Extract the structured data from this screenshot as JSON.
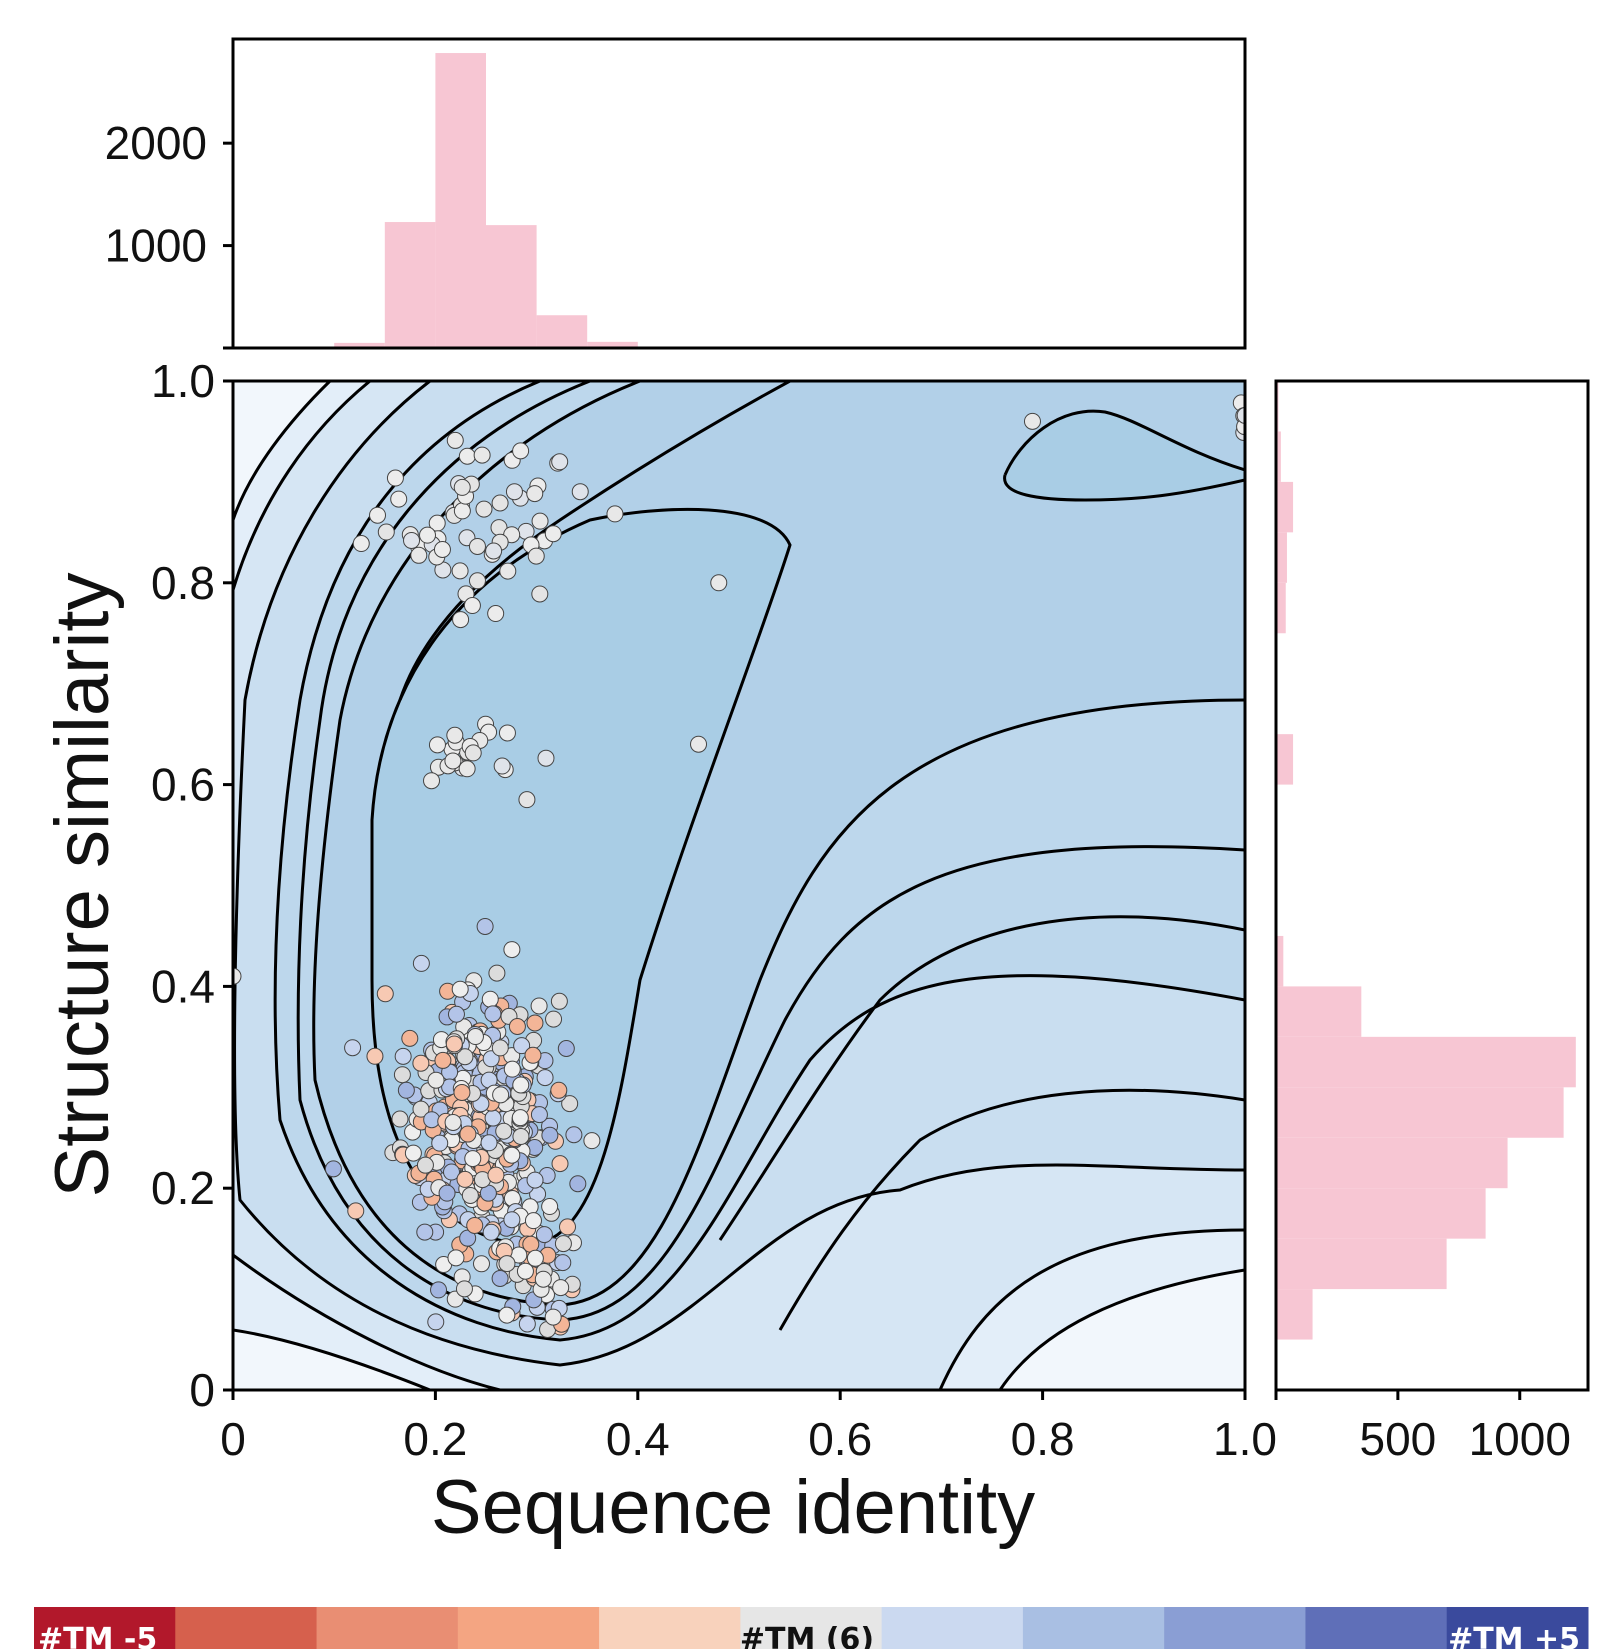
{
  "chart_data": {
    "type": "scatter",
    "subtype": "joint plot with KDE contours and marginal histograms",
    "xlabel": "Sequence identity",
    "ylabel": "Structure similarity",
    "xlim": [
      0,
      1.0
    ],
    "ylim": [
      0,
      1.0
    ],
    "x_ticks": [
      "0",
      "0.2",
      "0.4",
      "0.6",
      "0.8",
      "1.0"
    ],
    "y_ticks": [
      "0",
      "0.2",
      "0.4",
      "0.6",
      "0.8",
      "1.0"
    ],
    "grid": false,
    "kde_fill_color": "#a9cde5",
    "contour_line_color": "#000000",
    "histogram_color": "#f7c6d3",
    "top_histogram": {
      "orientation": "vertical",
      "y_ticks": [
        "1000",
        "2000"
      ],
      "ylim": [
        0,
        2900
      ],
      "bin_edges": [
        0.1,
        0.15,
        0.2,
        0.25,
        0.3,
        0.35,
        0.4
      ],
      "counts": [
        50,
        1230,
        2880,
        1200,
        320,
        60
      ]
    },
    "right_histogram": {
      "orientation": "horizontal",
      "x_ticks": [
        "500",
        "1000"
      ],
      "xlim": [
        0,
        1280
      ],
      "bins": [
        {
          "y0": 0.05,
          "y1": 0.1,
          "count": 150
        },
        {
          "y0": 0.1,
          "y1": 0.15,
          "count": 700
        },
        {
          "y0": 0.15,
          "y1": 0.2,
          "count": 860
        },
        {
          "y0": 0.2,
          "y1": 0.25,
          "count": 950
        },
        {
          "y0": 0.25,
          "y1": 0.3,
          "count": 1180
        },
        {
          "y0": 0.3,
          "y1": 0.35,
          "count": 1230
        },
        {
          "y0": 0.35,
          "y1": 0.4,
          "count": 350
        },
        {
          "y0": 0.4,
          "y1": 0.45,
          "count": 30
        },
        {
          "y0": 0.6,
          "y1": 0.65,
          "count": 70
        },
        {
          "y0": 0.75,
          "y1": 0.8,
          "count": 40
        },
        {
          "y0": 0.8,
          "y1": 0.85,
          "count": 45
        },
        {
          "y0": 0.85,
          "y1": 0.9,
          "count": 70
        },
        {
          "y0": 0.9,
          "y1": 0.95,
          "count": 20
        },
        {
          "y0": 0.95,
          "y1": 1.0,
          "count": 10
        }
      ]
    },
    "scatter_clusters": [
      {
        "cx": 0.24,
        "cy": 0.86,
        "sx": 0.055,
        "sy": 0.04,
        "n": 60,
        "tm_mix": "neutral"
      },
      {
        "cx": 0.23,
        "cy": 0.625,
        "sx": 0.03,
        "sy": 0.018,
        "n": 22,
        "tm_mix": "neutral"
      },
      {
        "cx": 0.24,
        "cy": 0.27,
        "sx": 0.035,
        "sy": 0.06,
        "n": 520,
        "tm_mix": "mixed"
      },
      {
        "cx": 0.3,
        "cy": 0.12,
        "sx": 0.02,
        "sy": 0.03,
        "n": 60,
        "tm_mix": "mixed"
      },
      {
        "cx": 1.0,
        "cy": 0.95,
        "sx": 0.004,
        "sy": 0.02,
        "n": 6,
        "tm_mix": "neutral"
      }
    ],
    "scatter_singles": [
      {
        "x": 0.79,
        "y": 0.96
      },
      {
        "x": 0.46,
        "y": 0.64
      },
      {
        "x": 0.48,
        "y": 0.8
      },
      {
        "x": 0.0,
        "y": 0.41
      }
    ],
    "colorbar": {
      "labels": [
        "#TM -5",
        "#TM (6)",
        "#TM +5"
      ],
      "colors": [
        "#b2182b",
        "#d6604d",
        "#e98e73",
        "#f4a582",
        "#f8d2bc",
        "#e6e6e6",
        "#cbd9f0",
        "#a9bfe3",
        "#8a9ed4",
        "#5f6fb8",
        "#3a4a9d"
      ]
    }
  }
}
